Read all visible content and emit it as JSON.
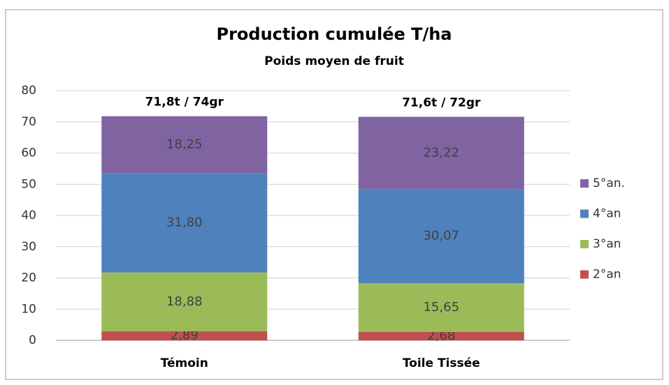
{
  "chart_data": {
    "type": "stacked_bar",
    "title": "Production  cumulée T/ha",
    "subtitle": "Poids moyen de fruit",
    "categories": [
      "Témoin",
      "Toile Tissée"
    ],
    "annotations": [
      "71,8t / 74gr",
      "71,6t / 72gr"
    ],
    "series": [
      {
        "name": "2°an",
        "color": "#c0504d",
        "values": [
          2.89,
          2.68
        ],
        "value_labels": [
          "2,89",
          "2,68"
        ]
      },
      {
        "name": "3°an",
        "color": "#9bbb59",
        "values": [
          18.88,
          15.65
        ],
        "value_labels": [
          "18,88",
          "15,65"
        ]
      },
      {
        "name": "4°an",
        "color": "#4f81bd",
        "values": [
          31.8,
          30.07
        ],
        "value_labels": [
          "31,80",
          "30,07"
        ]
      },
      {
        "name": "5°an.",
        "color": "#8064a2",
        "values": [
          18.25,
          23.22
        ],
        "value_labels": [
          "18,25",
          "23,22"
        ]
      }
    ],
    "ylim": [
      0,
      80
    ],
    "yticks": [
      0,
      10,
      20,
      30,
      40,
      50,
      60,
      70,
      80
    ],
    "grid": true,
    "legend": "right"
  }
}
